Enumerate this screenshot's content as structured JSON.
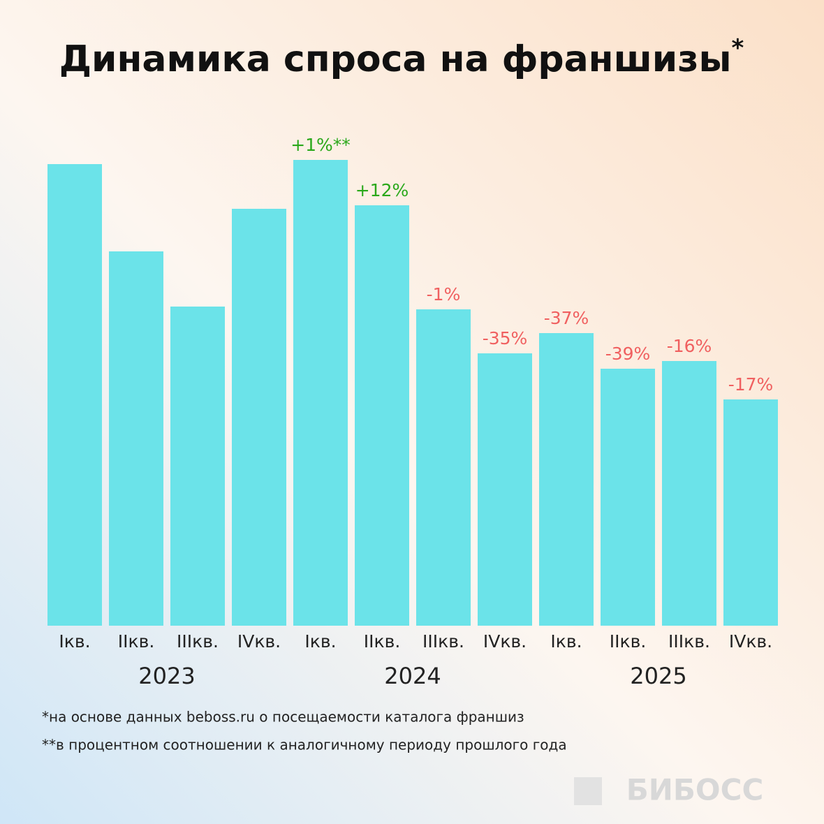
{
  "chart_data": {
    "type": "bar",
    "title": "Динамика спроса на франшизы",
    "title_mark": "*",
    "categories": [
      "Iкв.",
      "IIкв.",
      "IIIкв.",
      "IVкв.",
      "Iкв.",
      "IIкв.",
      "IIIкв.",
      "IVкв.",
      "Iкв.",
      "IIкв.",
      "IIIкв.",
      "IVкв."
    ],
    "values": [
      661,
      536,
      457,
      597,
      667,
      602,
      453,
      390,
      419,
      368,
      379,
      324
    ],
    "color": "#6be3e9",
    "ylim": [
      0,
      700
    ],
    "change_labels": [
      null,
      null,
      null,
      null,
      "+1%**",
      "+12%",
      "-1%",
      "-35%",
      "-37%",
      "-39%",
      "-16%",
      "-17%"
    ],
    "change_colors": [
      null,
      null,
      null,
      null,
      "#2aa81a",
      "#2aa81a",
      "#f06060",
      "#f06060",
      "#f06060",
      "#f06060",
      "#f06060",
      "#f06060"
    ],
    "years": [
      "2023",
      "2024",
      "2025"
    ],
    "footnotes": [
      "*на основе данных beboss.ru о посещаемости каталога франшиз",
      "**в процентном соотношении к аналогичному периоду прошлого года"
    ],
    "brand": "БИБОСС"
  }
}
